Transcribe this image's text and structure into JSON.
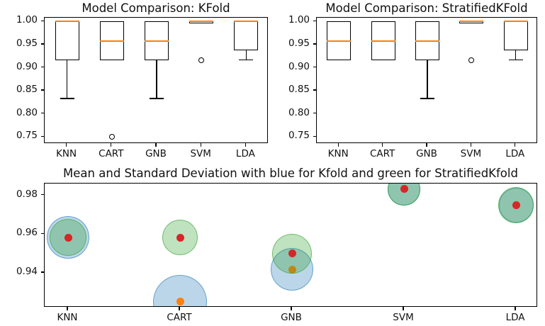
{
  "colors": {
    "median_line": "#ff7f0e",
    "box_edge": "#000000",
    "kfold_fill": "rgba(31,119,180,0.30)",
    "kfold_edge": "rgba(31,119,180,0.55)",
    "skfold_fill": "rgba(44,160,44,0.30)",
    "skfold_edge": "rgba(44,160,44,0.55)",
    "kfold_mean_dot": "#ff7f0e",
    "skfold_mean_dot": "#d62728"
  },
  "chart_data": [
    {
      "id": "kfold-boxplot",
      "type": "boxplot",
      "title": "Model Comparison: KFold",
      "categories": [
        "KNN",
        "CART",
        "GNB",
        "SVM",
        "LDA"
      ],
      "yticks": [
        0.75,
        0.8,
        0.85,
        0.9,
        0.95,
        1.0
      ],
      "ylim": [
        0.735,
        1.009
      ],
      "xlabel": "",
      "ylabel": "",
      "boxes": [
        {
          "label": "KNN",
          "whislo": 0.8333,
          "q1": 0.9167,
          "med": 1.0,
          "q3": 1.0,
          "whishi": 1.0,
          "fliers": []
        },
        {
          "label": "CART",
          "whislo": 0.9167,
          "q1": 0.9167,
          "med": 0.9583,
          "q3": 1.0,
          "whishi": 1.0,
          "fliers": [
            0.75
          ]
        },
        {
          "label": "GNB",
          "whislo": 0.8333,
          "q1": 0.9167,
          "med": 0.9583,
          "q3": 1.0,
          "whishi": 1.0,
          "fliers": []
        },
        {
          "label": "SVM",
          "whislo": 1.0,
          "q1": 1.0,
          "med": 1.0,
          "q3": 1.0,
          "whishi": 1.0,
          "fliers": [
            0.9167
          ]
        },
        {
          "label": "LDA",
          "whislo": 0.9167,
          "q1": 0.9375,
          "med": 1.0,
          "q3": 1.0,
          "whishi": 1.0,
          "fliers": []
        }
      ]
    },
    {
      "id": "stratifiedkfold-boxplot",
      "type": "boxplot",
      "title": "Model Comparison: StratifiedKFold",
      "categories": [
        "KNN",
        "CART",
        "GNB",
        "SVM",
        "LDA"
      ],
      "yticks": [
        0.75,
        0.8,
        0.85,
        0.9,
        0.95,
        1.0
      ],
      "ylim": [
        0.735,
        1.009
      ],
      "xlabel": "",
      "ylabel": "",
      "boxes": [
        {
          "label": "KNN",
          "whislo": 0.9167,
          "q1": 0.9167,
          "med": 0.9583,
          "q3": 1.0,
          "whishi": 1.0,
          "fliers": []
        },
        {
          "label": "CART",
          "whislo": 0.9167,
          "q1": 0.9167,
          "med": 0.9583,
          "q3": 1.0,
          "whishi": 1.0,
          "fliers": []
        },
        {
          "label": "GNB",
          "whislo": 0.8333,
          "q1": 0.9167,
          "med": 0.9583,
          "q3": 1.0,
          "whishi": 1.0,
          "fliers": []
        },
        {
          "label": "SVM",
          "whislo": 1.0,
          "q1": 1.0,
          "med": 1.0,
          "q3": 1.0,
          "whishi": 1.0,
          "fliers": [
            0.9167
          ]
        },
        {
          "label": "LDA",
          "whislo": 0.9167,
          "q1": 0.9375,
          "med": 1.0,
          "q3": 1.0,
          "whishi": 1.0,
          "fliers": []
        }
      ]
    },
    {
      "id": "mean-std-scatter",
      "type": "scatter",
      "title": "Mean and Standard Deviation with blue for Kfold and green for StratifiedKfold",
      "categories": [
        "KNN",
        "CART",
        "GNB",
        "SVM",
        "LDA"
      ],
      "yticks": [
        0.94,
        0.96,
        0.98
      ],
      "ylim": [
        0.922,
        0.9862
      ],
      "xlabel": "",
      "ylabel": "",
      "bubble_size_encodes": "standard deviation",
      "series": [
        {
          "name": "KFold",
          "color_key": "kfold",
          "means": [
            0.9583,
            0.925,
            0.9417,
            0.9833,
            0.975
          ],
          "stds": [
            0.053,
            0.067,
            0.053,
            0.04,
            0.043
          ]
        },
        {
          "name": "StratifiedKFold",
          "color_key": "skfold",
          "means": [
            0.9583,
            0.9583,
            0.95,
            0.9833,
            0.975
          ],
          "stds": [
            0.046,
            0.044,
            0.049,
            0.04,
            0.044
          ]
        }
      ]
    }
  ]
}
